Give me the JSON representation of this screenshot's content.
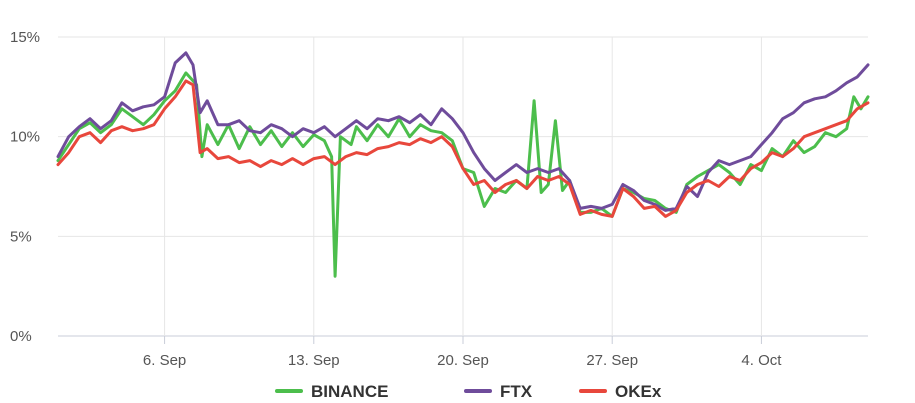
{
  "chart_data": {
    "type": "line",
    "title": "",
    "xlabel": "",
    "ylabel": "",
    "ylim": [
      0,
      15
    ],
    "y_ticks": [
      "0%",
      "5%",
      "10%",
      "15%"
    ],
    "y_tick_values": [
      0,
      5,
      10,
      15
    ],
    "x_range": [
      "2021-09-01",
      "2021-10-09"
    ],
    "x_ticks": [
      "6. Sep",
      "13. Sep",
      "20. Sep",
      "27. Sep",
      "4. Oct"
    ],
    "x_tick_dates": [
      "2021-09-06",
      "2021-09-13",
      "2021-09-20",
      "2021-09-27",
      "2021-10-04"
    ],
    "grid": true,
    "legend_position": "bottom-center",
    "series": [
      {
        "name": "BINANCE",
        "color": "#4cbe4c",
        "points": [
          [
            "2021-09-01",
            8.8
          ],
          [
            "2021-09-01T12:00",
            9.6
          ],
          [
            "2021-09-02",
            10.4
          ],
          [
            "2021-09-02T12:00",
            10.7
          ],
          [
            "2021-09-03",
            10.2
          ],
          [
            "2021-09-03T12:00",
            10.6
          ],
          [
            "2021-09-04",
            11.4
          ],
          [
            "2021-09-04T12:00",
            11.0
          ],
          [
            "2021-09-05",
            10.6
          ],
          [
            "2021-09-05T12:00",
            11.1
          ],
          [
            "2021-09-06",
            11.8
          ],
          [
            "2021-09-06T12:00",
            12.3
          ],
          [
            "2021-09-07",
            13.2
          ],
          [
            "2021-09-07T12:00",
            12.6
          ],
          [
            "2021-09-07T18:00",
            9.0
          ],
          [
            "2021-09-08",
            10.6
          ],
          [
            "2021-09-08T12:00",
            9.6
          ],
          [
            "2021-09-09",
            10.6
          ],
          [
            "2021-09-09T12:00",
            9.4
          ],
          [
            "2021-09-10",
            10.5
          ],
          [
            "2021-09-10T12:00",
            9.6
          ],
          [
            "2021-09-11",
            10.3
          ],
          [
            "2021-09-11T12:00",
            9.5
          ],
          [
            "2021-09-12",
            10.2
          ],
          [
            "2021-09-12T12:00",
            9.5
          ],
          [
            "2021-09-13",
            10.1
          ],
          [
            "2021-09-13T12:00",
            9.8
          ],
          [
            "2021-09-13T20:00",
            9.0
          ],
          [
            "2021-09-14",
            3.0
          ],
          [
            "2021-09-14T06:00",
            10.0
          ],
          [
            "2021-09-14T18:00",
            9.6
          ],
          [
            "2021-09-15",
            10.5
          ],
          [
            "2021-09-15T12:00",
            9.8
          ],
          [
            "2021-09-16",
            10.6
          ],
          [
            "2021-09-16T12:00",
            10.0
          ],
          [
            "2021-09-17",
            10.9
          ],
          [
            "2021-09-17T12:00",
            10.0
          ],
          [
            "2021-09-18",
            10.6
          ],
          [
            "2021-09-18T12:00",
            10.3
          ],
          [
            "2021-09-19",
            10.2
          ],
          [
            "2021-09-19T12:00",
            9.8
          ],
          [
            "2021-09-20",
            8.4
          ],
          [
            "2021-09-20T12:00",
            8.2
          ],
          [
            "2021-09-21",
            6.5
          ],
          [
            "2021-09-21T12:00",
            7.4
          ],
          [
            "2021-09-22",
            7.2
          ],
          [
            "2021-09-22T12:00",
            7.8
          ],
          [
            "2021-09-23",
            7.4
          ],
          [
            "2021-09-23T08:00",
            11.8
          ],
          [
            "2021-09-23T16:00",
            7.2
          ],
          [
            "2021-09-24",
            7.6
          ],
          [
            "2021-09-24T08:00",
            10.8
          ],
          [
            "2021-09-24T16:00",
            7.3
          ],
          [
            "2021-09-25",
            7.8
          ],
          [
            "2021-09-25T12:00",
            6.2
          ],
          [
            "2021-09-26",
            6.2
          ],
          [
            "2021-09-26T12:00",
            6.4
          ],
          [
            "2021-09-27",
            6.0
          ],
          [
            "2021-09-27T12:00",
            7.4
          ],
          [
            "2021-09-28",
            7.2
          ],
          [
            "2021-09-28T12:00",
            6.9
          ],
          [
            "2021-09-29",
            6.8
          ],
          [
            "2021-09-29T12:00",
            6.4
          ],
          [
            "2021-09-30",
            6.2
          ],
          [
            "2021-09-30T12:00",
            7.6
          ],
          [
            "2021-10-01",
            8.0
          ],
          [
            "2021-10-01T12:00",
            8.3
          ],
          [
            "2021-10-02",
            8.6
          ],
          [
            "2021-10-02T12:00",
            8.2
          ],
          [
            "2021-10-03",
            7.6
          ],
          [
            "2021-10-03T12:00",
            8.6
          ],
          [
            "2021-10-04",
            8.3
          ],
          [
            "2021-10-04T12:00",
            9.4
          ],
          [
            "2021-10-05",
            9.0
          ],
          [
            "2021-10-05T12:00",
            9.8
          ],
          [
            "2021-10-06",
            9.2
          ],
          [
            "2021-10-06T12:00",
            9.5
          ],
          [
            "2021-10-07",
            10.2
          ],
          [
            "2021-10-07T12:00",
            10.0
          ],
          [
            "2021-10-08",
            10.4
          ],
          [
            "2021-10-08T08:00",
            12.0
          ],
          [
            "2021-10-08T16:00",
            11.4
          ],
          [
            "2021-10-09",
            12.0
          ]
        ]
      },
      {
        "name": "FTX",
        "color": "#6f4c9b",
        "points": [
          [
            "2021-09-01",
            9.0
          ],
          [
            "2021-09-01T12:00",
            10.0
          ],
          [
            "2021-09-02",
            10.5
          ],
          [
            "2021-09-02T12:00",
            10.9
          ],
          [
            "2021-09-03",
            10.4
          ],
          [
            "2021-09-03T12:00",
            10.8
          ],
          [
            "2021-09-04",
            11.7
          ],
          [
            "2021-09-04T12:00",
            11.3
          ],
          [
            "2021-09-05",
            11.5
          ],
          [
            "2021-09-05T12:00",
            11.6
          ],
          [
            "2021-09-06",
            12.0
          ],
          [
            "2021-09-06T12:00",
            13.7
          ],
          [
            "2021-09-07",
            14.2
          ],
          [
            "2021-09-07T08:00",
            13.6
          ],
          [
            "2021-09-07T16:00",
            11.2
          ],
          [
            "2021-09-08",
            11.8
          ],
          [
            "2021-09-08T12:00",
            10.6
          ],
          [
            "2021-09-09",
            10.6
          ],
          [
            "2021-09-09T12:00",
            10.8
          ],
          [
            "2021-09-10",
            10.3
          ],
          [
            "2021-09-10T12:00",
            10.2
          ],
          [
            "2021-09-11",
            10.6
          ],
          [
            "2021-09-11T12:00",
            10.4
          ],
          [
            "2021-09-12",
            10.0
          ],
          [
            "2021-09-12T12:00",
            10.4
          ],
          [
            "2021-09-13",
            10.2
          ],
          [
            "2021-09-13T12:00",
            10.5
          ],
          [
            "2021-09-14",
            10.0
          ],
          [
            "2021-09-14T12:00",
            10.4
          ],
          [
            "2021-09-15",
            10.8
          ],
          [
            "2021-09-15T12:00",
            10.4
          ],
          [
            "2021-09-16",
            10.9
          ],
          [
            "2021-09-16T12:00",
            10.8
          ],
          [
            "2021-09-17",
            11.0
          ],
          [
            "2021-09-17T12:00",
            10.7
          ],
          [
            "2021-09-18",
            11.1
          ],
          [
            "2021-09-18T12:00",
            10.6
          ],
          [
            "2021-09-19",
            11.4
          ],
          [
            "2021-09-19T12:00",
            10.9
          ],
          [
            "2021-09-20",
            10.2
          ],
          [
            "2021-09-20T12:00",
            9.2
          ],
          [
            "2021-09-21",
            8.4
          ],
          [
            "2021-09-21T12:00",
            7.8
          ],
          [
            "2021-09-22",
            8.2
          ],
          [
            "2021-09-22T12:00",
            8.6
          ],
          [
            "2021-09-23",
            8.2
          ],
          [
            "2021-09-23T12:00",
            8.4
          ],
          [
            "2021-09-24",
            8.2
          ],
          [
            "2021-09-24T12:00",
            8.4
          ],
          [
            "2021-09-25",
            7.8
          ],
          [
            "2021-09-25T12:00",
            6.4
          ],
          [
            "2021-09-26",
            6.5
          ],
          [
            "2021-09-26T12:00",
            6.4
          ],
          [
            "2021-09-27",
            6.6
          ],
          [
            "2021-09-27T12:00",
            7.6
          ],
          [
            "2021-09-28",
            7.3
          ],
          [
            "2021-09-28T12:00",
            6.8
          ],
          [
            "2021-09-29",
            6.6
          ],
          [
            "2021-09-29T12:00",
            6.3
          ],
          [
            "2021-09-30",
            6.4
          ],
          [
            "2021-09-30T12:00",
            7.5
          ],
          [
            "2021-10-01",
            7.0
          ],
          [
            "2021-10-01T12:00",
            8.2
          ],
          [
            "2021-10-02",
            8.8
          ],
          [
            "2021-10-02T12:00",
            8.6
          ],
          [
            "2021-10-03",
            8.8
          ],
          [
            "2021-10-03T12:00",
            9.0
          ],
          [
            "2021-10-04",
            9.6
          ],
          [
            "2021-10-04T12:00",
            10.2
          ],
          [
            "2021-10-05",
            10.9
          ],
          [
            "2021-10-05T12:00",
            11.2
          ],
          [
            "2021-10-06",
            11.7
          ],
          [
            "2021-10-06T12:00",
            11.9
          ],
          [
            "2021-10-07",
            12.0
          ],
          [
            "2021-10-07T12:00",
            12.3
          ],
          [
            "2021-10-08",
            12.7
          ],
          [
            "2021-10-08T12:00",
            13.0
          ],
          [
            "2021-10-09",
            13.6
          ]
        ]
      },
      {
        "name": "OKEx",
        "color": "#e8473c",
        "points": [
          [
            "2021-09-01",
            8.6
          ],
          [
            "2021-09-01T12:00",
            9.2
          ],
          [
            "2021-09-02",
            10.0
          ],
          [
            "2021-09-02T12:00",
            10.2
          ],
          [
            "2021-09-03",
            9.7
          ],
          [
            "2021-09-03T12:00",
            10.3
          ],
          [
            "2021-09-04",
            10.5
          ],
          [
            "2021-09-04T12:00",
            10.3
          ],
          [
            "2021-09-05",
            10.4
          ],
          [
            "2021-09-05T12:00",
            10.6
          ],
          [
            "2021-09-06",
            11.4
          ],
          [
            "2021-09-06T12:00",
            12.0
          ],
          [
            "2021-09-07",
            12.8
          ],
          [
            "2021-09-07T08:00",
            12.6
          ],
          [
            "2021-09-07T16:00",
            9.2
          ],
          [
            "2021-09-08",
            9.4
          ],
          [
            "2021-09-08T12:00",
            8.9
          ],
          [
            "2021-09-09",
            9.0
          ],
          [
            "2021-09-09T12:00",
            8.7
          ],
          [
            "2021-09-10",
            8.8
          ],
          [
            "2021-09-10T12:00",
            8.5
          ],
          [
            "2021-09-11",
            8.8
          ],
          [
            "2021-09-11T12:00",
            8.6
          ],
          [
            "2021-09-12",
            8.9
          ],
          [
            "2021-09-12T12:00",
            8.6
          ],
          [
            "2021-09-13",
            8.9
          ],
          [
            "2021-09-13T12:00",
            9.0
          ],
          [
            "2021-09-14",
            8.6
          ],
          [
            "2021-09-14T12:00",
            9.0
          ],
          [
            "2021-09-15",
            9.2
          ],
          [
            "2021-09-15T12:00",
            9.1
          ],
          [
            "2021-09-16",
            9.4
          ],
          [
            "2021-09-16T12:00",
            9.5
          ],
          [
            "2021-09-17",
            9.7
          ],
          [
            "2021-09-17T12:00",
            9.6
          ],
          [
            "2021-09-18",
            9.9
          ],
          [
            "2021-09-18T12:00",
            9.7
          ],
          [
            "2021-09-19",
            10.0
          ],
          [
            "2021-09-19T12:00",
            9.5
          ],
          [
            "2021-09-20",
            8.4
          ],
          [
            "2021-09-20T12:00",
            7.6
          ],
          [
            "2021-09-21",
            7.8
          ],
          [
            "2021-09-21T12:00",
            7.2
          ],
          [
            "2021-09-22",
            7.6
          ],
          [
            "2021-09-22T12:00",
            7.8
          ],
          [
            "2021-09-23",
            7.4
          ],
          [
            "2021-09-23T12:00",
            8.0
          ],
          [
            "2021-09-24",
            7.8
          ],
          [
            "2021-09-24T12:00",
            8.0
          ],
          [
            "2021-09-25",
            7.6
          ],
          [
            "2021-09-25T12:00",
            6.1
          ],
          [
            "2021-09-26",
            6.3
          ],
          [
            "2021-09-26T12:00",
            6.1
          ],
          [
            "2021-09-27",
            6.0
          ],
          [
            "2021-09-27T12:00",
            7.4
          ],
          [
            "2021-09-28",
            7.0
          ],
          [
            "2021-09-28T12:00",
            6.4
          ],
          [
            "2021-09-29",
            6.5
          ],
          [
            "2021-09-29T12:00",
            6.0
          ],
          [
            "2021-09-30",
            6.3
          ],
          [
            "2021-09-30T12:00",
            7.2
          ],
          [
            "2021-10-01",
            7.6
          ],
          [
            "2021-10-01T12:00",
            7.8
          ],
          [
            "2021-10-02",
            7.5
          ],
          [
            "2021-10-02T12:00",
            8.0
          ],
          [
            "2021-10-03",
            7.8
          ],
          [
            "2021-10-03T12:00",
            8.4
          ],
          [
            "2021-10-04",
            8.7
          ],
          [
            "2021-10-04T12:00",
            9.2
          ],
          [
            "2021-10-05",
            9.0
          ],
          [
            "2021-10-05T12:00",
            9.4
          ],
          [
            "2021-10-06",
            10.0
          ],
          [
            "2021-10-06T12:00",
            10.2
          ],
          [
            "2021-10-07",
            10.4
          ],
          [
            "2021-10-07T12:00",
            10.6
          ],
          [
            "2021-10-08",
            10.8
          ],
          [
            "2021-10-08T12:00",
            11.4
          ],
          [
            "2021-10-09",
            11.7
          ]
        ]
      }
    ]
  }
}
